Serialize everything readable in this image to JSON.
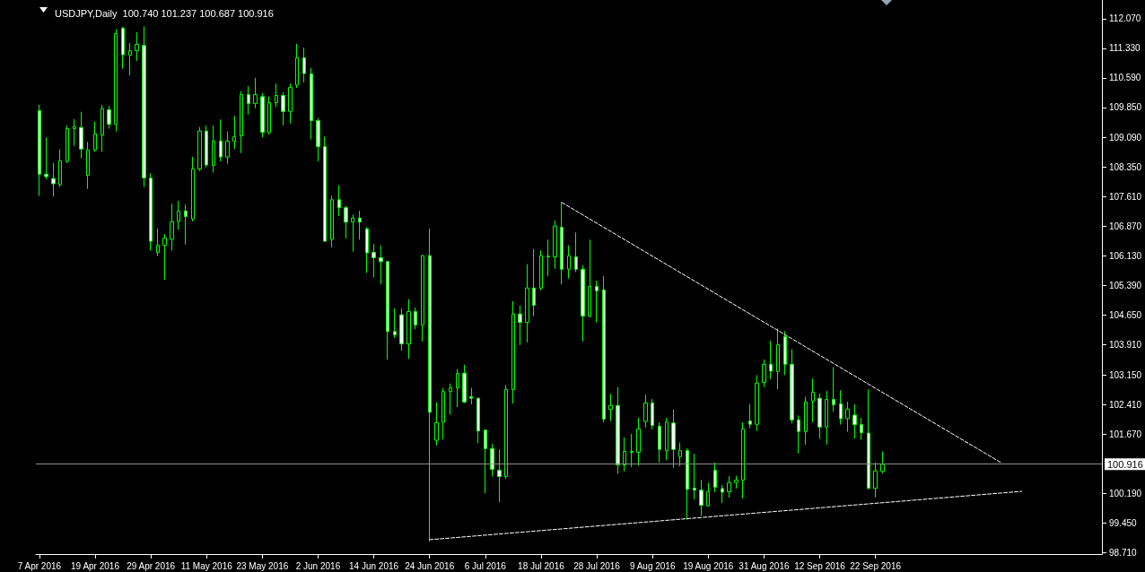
{
  "chart_data": {
    "type": "candlestick",
    "title": "USDJPY,Daily  100.740 101.237 100.687 100.916",
    "categories": [
      "7 Apr 2016",
      null,
      null,
      null,
      null,
      null,
      null,
      null,
      "19 Apr 2016",
      null,
      null,
      null,
      null,
      null,
      null,
      null,
      "29 Apr 2016",
      null,
      null,
      null,
      null,
      null,
      null,
      null,
      "11 May 2016",
      null,
      null,
      null,
      null,
      null,
      null,
      null,
      "23 May 2016",
      null,
      null,
      null,
      null,
      null,
      null,
      null,
      "2 Jun 2016",
      null,
      null,
      null,
      null,
      null,
      null,
      null,
      "14 Jun 2016",
      null,
      null,
      null,
      null,
      null,
      null,
      null,
      "24 Jun 2016",
      null,
      null,
      null,
      null,
      null,
      null,
      null,
      "6 Jul 2016",
      null,
      null,
      null,
      null,
      null,
      null,
      null,
      "18 Jul 2016",
      null,
      null,
      null,
      null,
      null,
      null,
      null,
      "28 Jul 2016",
      null,
      null,
      null,
      null,
      null,
      null,
      null,
      "9 Aug 2016",
      null,
      null,
      null,
      null,
      null,
      null,
      null,
      "19 Aug 2016",
      null,
      null,
      null,
      null,
      null,
      null,
      null,
      "31 Aug 2016",
      null,
      null,
      null,
      null,
      null,
      null,
      null,
      "12 Sep 2016",
      null,
      null,
      null,
      null,
      null,
      null,
      null,
      "22 Sep 2016",
      null,
      null,
      null,
      null,
      null,
      null,
      null,
      null,
      null,
      null,
      null,
      null,
      null,
      null,
      null,
      null,
      null,
      null,
      null,
      null,
      null,
      null,
      null,
      null,
      null,
      null,
      null,
      null,
      null,
      null,
      null,
      null
    ],
    "ylim": [
      98.67,
      112.54
    ],
    "yticks": [
      {
        "value": 98.71,
        "label": "98.710"
      },
      {
        "value": 99.45,
        "label": "99.450"
      },
      {
        "value": 100.19,
        "label": "100.190"
      },
      {
        "value": 101.67,
        "label": "101.670"
      },
      {
        "value": 102.41,
        "label": "102.410"
      },
      {
        "value": 103.15,
        "label": "103.150"
      },
      {
        "value": 103.91,
        "label": "103.910"
      },
      {
        "value": 104.65,
        "label": "104.650"
      },
      {
        "value": 105.39,
        "label": "105.390"
      },
      {
        "value": 106.13,
        "label": "106.130"
      },
      {
        "value": 106.87,
        "label": "106.870"
      },
      {
        "value": 107.61,
        "label": "107.610"
      },
      {
        "value": 108.35,
        "label": "108.350"
      },
      {
        "value": 109.09,
        "label": "109.090"
      },
      {
        "value": 109.85,
        "label": "109.850"
      },
      {
        "value": 110.59,
        "label": "110.590"
      },
      {
        "value": 111.33,
        "label": "111.330"
      },
      {
        "value": 112.07,
        "label": "112.070"
      }
    ],
    "ref_lines": [
      {
        "axis": "y",
        "value": 100.916,
        "label": "100.916",
        "color": "#8c8c8c"
      }
    ],
    "series": [
      {
        "color": "#00ff00",
        "ohlc": [
          [
            109.77,
            109.92,
            107.64,
            108.18
          ],
          [
            108.18,
            109.1,
            108.05,
            108.12
          ],
          [
            108.07,
            108.46,
            107.62,
            107.94
          ],
          [
            107.92,
            108.8,
            107.86,
            108.52
          ],
          [
            108.5,
            109.4,
            108.46,
            109.32
          ],
          [
            109.32,
            109.56,
            108.89,
            109.37
          ],
          [
            109.35,
            109.74,
            108.58,
            108.81
          ],
          [
            108.15,
            108.99,
            107.81,
            108.79
          ],
          [
            108.79,
            109.49,
            108.74,
            109.19
          ],
          [
            109.16,
            109.91,
            108.74,
            109.82
          ],
          [
            109.79,
            109.89,
            109.32,
            109.43
          ],
          [
            109.43,
            111.81,
            109.25,
            111.7
          ],
          [
            111.83,
            111.87,
            110.82,
            111.17
          ],
          [
            111.16,
            111.46,
            110.65,
            111.27
          ],
          [
            111.27,
            111.73,
            111.01,
            111.43
          ],
          [
            111.4,
            111.88,
            107.86,
            108.09
          ],
          [
            108.08,
            108.2,
            106.27,
            106.5
          ],
          [
            106.22,
            106.82,
            106.13,
            106.4
          ],
          [
            106.4,
            106.68,
            105.54,
            106.58
          ],
          [
            106.55,
            107.44,
            106.27,
            106.99
          ],
          [
            107.0,
            107.51,
            106.79,
            107.26
          ],
          [
            107.26,
            107.42,
            106.42,
            107.12
          ],
          [
            107.06,
            108.61,
            107.0,
            108.31
          ],
          [
            108.31,
            109.36,
            108.26,
            109.26
          ],
          [
            109.26,
            109.4,
            108.35,
            108.41
          ],
          [
            108.4,
            109.4,
            108.22,
            109.01
          ],
          [
            109.01,
            109.55,
            108.5,
            108.61
          ],
          [
            108.61,
            109.25,
            108.44,
            109.01
          ],
          [
            109.01,
            109.64,
            108.81,
            109.12
          ],
          [
            109.14,
            110.26,
            108.71,
            110.17
          ],
          [
            110.17,
            110.38,
            109.67,
            109.95
          ],
          [
            109.95,
            110.59,
            109.83,
            110.17
          ],
          [
            110.12,
            110.21,
            109.1,
            109.23
          ],
          [
            109.22,
            110.13,
            109.17,
            109.97
          ],
          [
            109.97,
            110.45,
            109.86,
            110.15
          ],
          [
            110.15,
            110.23,
            109.4,
            109.75
          ],
          [
            109.75,
            110.45,
            109.45,
            110.35
          ],
          [
            110.41,
            111.44,
            110.34,
            111.09
          ],
          [
            111.09,
            111.35,
            110.48,
            110.7
          ],
          [
            110.69,
            110.84,
            109.05,
            109.52
          ],
          [
            109.52,
            109.58,
            108.5,
            108.87
          ],
          [
            108.87,
            109.12,
            106.49,
            106.5
          ],
          [
            106.55,
            107.64,
            106.35,
            107.54
          ],
          [
            107.54,
            107.9,
            107.13,
            107.34
          ],
          [
            107.34,
            107.39,
            106.57,
            106.98
          ],
          [
            106.98,
            107.17,
            106.24,
            107.08
          ],
          [
            107.08,
            107.26,
            106.54,
            106.98
          ],
          [
            106.81,
            106.85,
            105.71,
            106.21
          ],
          [
            106.22,
            106.43,
            105.6,
            106.09
          ],
          [
            106.09,
            106.4,
            105.42,
            105.99
          ],
          [
            105.99,
            106.01,
            103.54,
            104.24
          ],
          [
            104.24,
            104.82,
            104.08,
            104.16
          ],
          [
            104.66,
            104.82,
            103.76,
            103.93
          ],
          [
            103.93,
            105.05,
            103.56,
            104.74
          ],
          [
            104.74,
            104.84,
            104.3,
            104.41
          ],
          [
            104.41,
            106.16,
            103.99,
            106.14
          ],
          [
            106.14,
            106.82,
            98.99,
            102.22
          ],
          [
            101.52,
            102.47,
            101.39,
            101.96
          ],
          [
            101.97,
            102.83,
            101.54,
            102.74
          ],
          [
            102.74,
            102.94,
            102.16,
            102.83
          ],
          [
            102.83,
            103.3,
            102.35,
            103.19
          ],
          [
            103.2,
            103.41,
            102.45,
            102.48
          ],
          [
            102.61,
            102.83,
            102.42,
            102.57
          ],
          [
            102.57,
            102.59,
            101.45,
            101.75
          ],
          [
            101.77,
            101.78,
            100.19,
            101.31
          ],
          [
            101.31,
            101.43,
            100.61,
            100.79
          ],
          [
            100.77,
            101.29,
            99.97,
            100.61
          ],
          [
            100.61,
            102.9,
            100.55,
            102.79
          ],
          [
            102.79,
            105.0,
            102.44,
            104.68
          ],
          [
            104.68,
            104.89,
            103.9,
            104.47
          ],
          [
            104.47,
            105.93,
            103.97,
            105.33
          ],
          [
            105.33,
            106.31,
            104.62,
            104.9
          ],
          [
            105.33,
            106.27,
            105.27,
            106.14
          ],
          [
            106.11,
            106.54,
            105.63,
            106.13
          ],
          [
            106.11,
            107.02,
            105.81,
            106.88
          ],
          [
            106.85,
            107.48,
            105.42,
            105.8
          ],
          [
            105.8,
            106.4,
            105.57,
            106.14
          ],
          [
            106.11,
            106.72,
            105.73,
            105.8
          ],
          [
            105.8,
            105.9,
            103.99,
            104.63
          ],
          [
            104.63,
            106.54,
            104.59,
            105.37
          ],
          [
            105.37,
            105.51,
            104.47,
            105.26
          ],
          [
            105.28,
            105.63,
            101.97,
            102.05
          ],
          [
            102.29,
            102.68,
            102.0,
            102.39
          ],
          [
            102.39,
            102.85,
            100.68,
            100.9
          ],
          [
            100.9,
            101.59,
            100.74,
            101.24
          ],
          [
            101.22,
            101.68,
            100.85,
            101.24
          ],
          [
            101.22,
            102.08,
            100.88,
            101.8
          ],
          [
            101.99,
            102.66,
            101.84,
            102.45
          ],
          [
            102.45,
            102.55,
            101.79,
            101.89
          ],
          [
            101.87,
            101.97,
            100.96,
            101.29
          ],
          [
            101.26,
            102.08,
            101.02,
            101.97
          ],
          [
            101.95,
            102.29,
            100.83,
            101.29
          ],
          [
            101.11,
            101.46,
            100.87,
            101.26
          ],
          [
            101.26,
            101.32,
            99.53,
            100.29
          ],
          [
            100.32,
            101.18,
            100.04,
            100.27
          ],
          [
            100.27,
            100.53,
            99.63,
            99.89
          ],
          [
            99.88,
            100.45,
            99.86,
            100.23
          ],
          [
            100.77,
            100.96,
            100.22,
            100.34
          ],
          [
            100.31,
            100.4,
            99.95,
            100.22
          ],
          [
            100.23,
            100.62,
            100.08,
            100.46
          ],
          [
            100.46,
            100.63,
            100.31,
            100.52
          ],
          [
            100.52,
            101.97,
            100.06,
            101.8
          ],
          [
            102.0,
            102.42,
            101.82,
            101.92
          ],
          [
            101.92,
            103.15,
            101.75,
            102.95
          ],
          [
            102.97,
            103.54,
            102.85,
            103.42
          ],
          [
            103.42,
            104.01,
            103.05,
            103.25
          ],
          [
            103.24,
            104.32,
            102.79,
            103.91
          ],
          [
            104.11,
            104.25,
            103.15,
            103.42
          ],
          [
            103.42,
            103.8,
            101.94,
            102.03
          ],
          [
            102.03,
            102.14,
            101.19,
            101.74
          ],
          [
            101.73,
            102.61,
            101.41,
            102.48
          ],
          [
            102.5,
            103.06,
            101.97,
            102.72
          ],
          [
            102.57,
            102.69,
            101.55,
            101.85
          ],
          [
            101.85,
            102.75,
            101.41,
            102.54
          ],
          [
            102.54,
            103.35,
            102.24,
            102.41
          ],
          [
            102.43,
            102.77,
            101.91,
            102.06
          ],
          [
            102.06,
            102.48,
            101.73,
            102.3
          ],
          [
            102.15,
            102.42,
            101.56,
            101.91
          ],
          [
            101.91,
            102.08,
            101.53,
            101.71
          ],
          [
            101.7,
            102.79,
            100.29,
            100.32
          ],
          [
            100.32,
            100.96,
            100.09,
            100.75
          ],
          [
            100.74,
            101.237,
            100.687,
            100.916
          ],
          null,
          null,
          null,
          null,
          null,
          null,
          null,
          null,
          null,
          null,
          null,
          null,
          null,
          null,
          null,
          null,
          null,
          null,
          null,
          null,
          null,
          null,
          null,
          null,
          null,
          null,
          null,
          null,
          null,
          null,
          null
        ]
      },
      {
        "type": "line",
        "color": "#ffffff",
        "line_style": "dashed",
        "marker": "none",
        "values": [
          null,
          null,
          null,
          null,
          null,
          null,
          null,
          null,
          null,
          null,
          null,
          null,
          null,
          null,
          null,
          null,
          null,
          null,
          null,
          null,
          null,
          null,
          null,
          null,
          null,
          null,
          null,
          null,
          null,
          null,
          null,
          null,
          null,
          null,
          null,
          null,
          null,
          null,
          null,
          null,
          null,
          null,
          null,
          null,
          null,
          null,
          null,
          null,
          null,
          null,
          null,
          null,
          null,
          null,
          null,
          null,
          null,
          null,
          null,
          null,
          null,
          null,
          null,
          null,
          null,
          null,
          null,
          null,
          null,
          null,
          null,
          null,
          null,
          null,
          null,
          107.47,
          null,
          null,
          null,
          null,
          null,
          null,
          null,
          null,
          null,
          null,
          null,
          null,
          null,
          null,
          null,
          null,
          null,
          null,
          null,
          null,
          null,
          null,
          null,
          null,
          null,
          null,
          null,
          null,
          null,
          null,
          null,
          null,
          null,
          null,
          null,
          null,
          null,
          null,
          null,
          null,
          null,
          null,
          null,
          null,
          null,
          null,
          null,
          null,
          null,
          null,
          null,
          null,
          null,
          null,
          null,
          null,
          null,
          null,
          null,
          null,
          null,
          null,
          100.96,
          null,
          null,
          null,
          null,
          null,
          null,
          null,
          null,
          null,
          null,
          null,
          null,
          null,
          null
        ]
      },
      {
        "type": "line",
        "color": "#ffffff",
        "line_style": "dashed",
        "marker": "none",
        "values": [
          null,
          null,
          null,
          null,
          null,
          null,
          null,
          null,
          null,
          null,
          null,
          null,
          null,
          null,
          null,
          null,
          null,
          null,
          null,
          null,
          null,
          null,
          null,
          null,
          null,
          null,
          null,
          null,
          null,
          null,
          null,
          null,
          null,
          null,
          null,
          null,
          null,
          null,
          null,
          null,
          null,
          null,
          null,
          null,
          null,
          null,
          null,
          null,
          null,
          null,
          null,
          null,
          null,
          null,
          null,
          null,
          99.03,
          null,
          null,
          null,
          null,
          null,
          null,
          null,
          null,
          null,
          null,
          null,
          null,
          null,
          null,
          null,
          null,
          null,
          null,
          null,
          null,
          null,
          null,
          null,
          null,
          null,
          null,
          null,
          null,
          null,
          null,
          null,
          null,
          null,
          null,
          null,
          null,
          null,
          null,
          null,
          null,
          null,
          null,
          null,
          null,
          null,
          null,
          null,
          null,
          null,
          null,
          null,
          null,
          null,
          null,
          null,
          null,
          null,
          null,
          null,
          null,
          null,
          null,
          null,
          null,
          null,
          null,
          null,
          null,
          null,
          null,
          null,
          null,
          null,
          null,
          null,
          null,
          null,
          null,
          null,
          null,
          null,
          null,
          null,
          null,
          100.24,
          null,
          null,
          null,
          null,
          null,
          null,
          null,
          null,
          null,
          null,
          null
        ]
      }
    ]
  }
}
